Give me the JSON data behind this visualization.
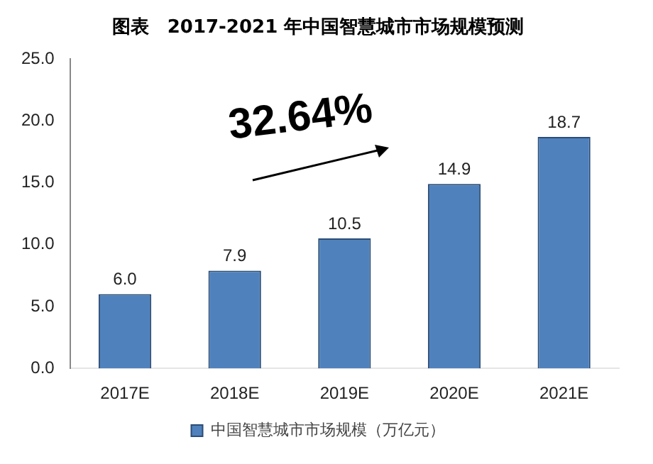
{
  "chart_data": {
    "type": "bar",
    "title": "图表　2017-2021 年中国智慧城市市场规模预测",
    "categories": [
      "2017E",
      "2018E",
      "2019E",
      "2020E",
      "2021E"
    ],
    "series": [
      {
        "name": "中国智慧城市市场规模（万亿元）",
        "color": "#4f81bd",
        "values": [
          6.0,
          7.9,
          10.5,
          14.9,
          18.7
        ],
        "value_labels": [
          "6.0",
          "7.9",
          "10.5",
          "14.9",
          "18.7"
        ]
      }
    ],
    "ylim": [
      0,
      25
    ],
    "yticks": [
      {
        "value": 0,
        "label": "0.0"
      },
      {
        "value": 5,
        "label": "5.0"
      },
      {
        "value": 10,
        "label": "10.0"
      },
      {
        "value": 15,
        "label": "15.0"
      },
      {
        "value": 20,
        "label": "20.0"
      },
      {
        "value": 25,
        "label": "25.0"
      }
    ],
    "grid": false,
    "legend": "bottom",
    "annotations": [
      "32.64%"
    ]
  }
}
